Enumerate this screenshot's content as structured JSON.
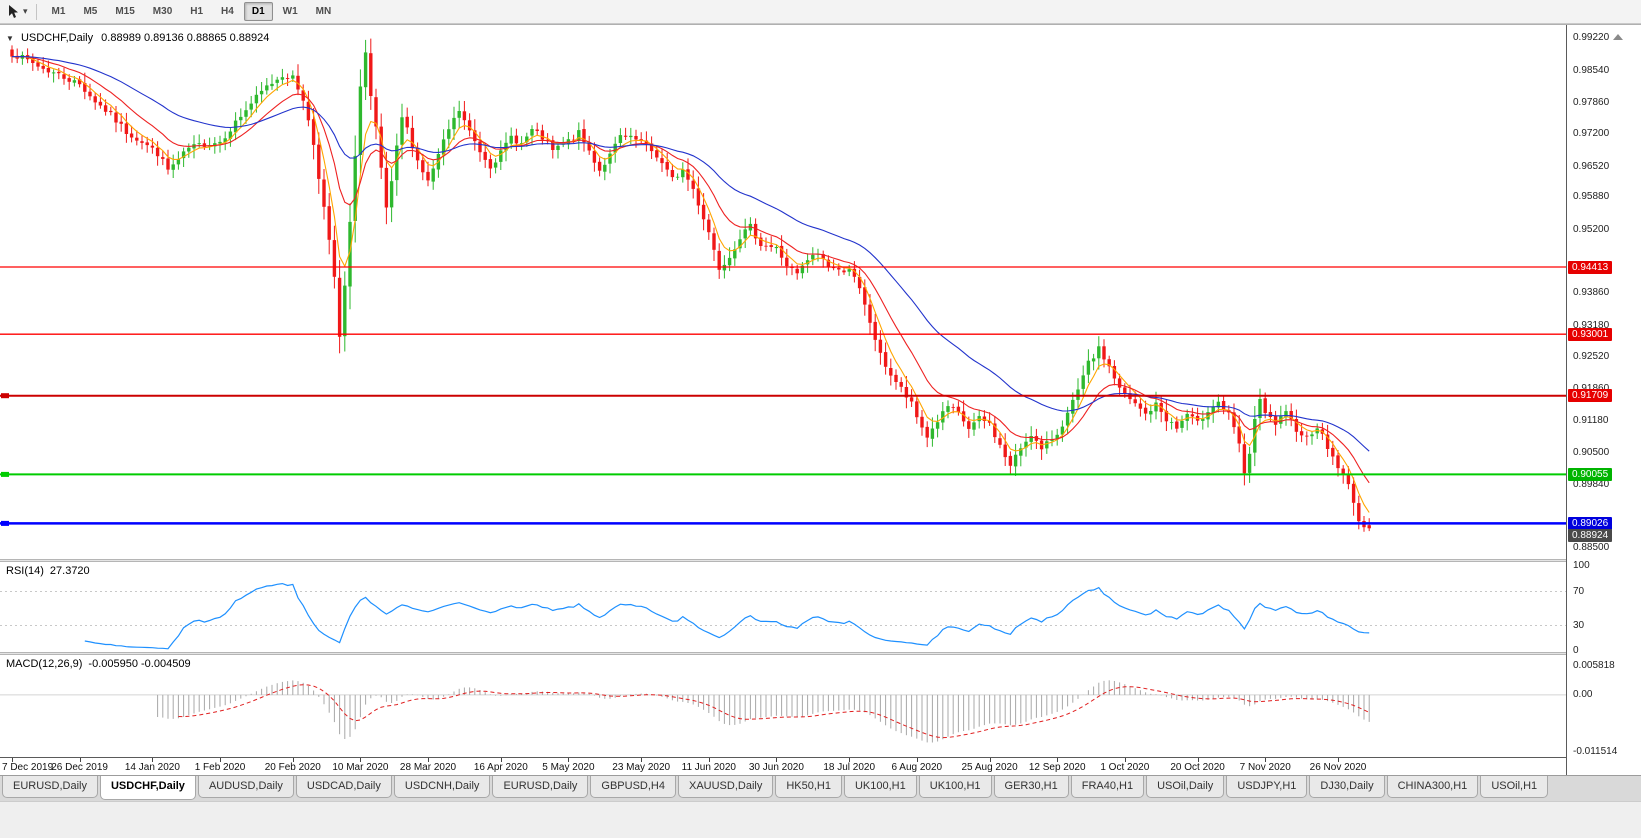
{
  "toolbar": {
    "timeframes": [
      "M1",
      "M5",
      "M15",
      "M30",
      "H1",
      "H4",
      "D1",
      "W1",
      "MN"
    ],
    "active_timeframe": "D1",
    "caret_icon": "▾"
  },
  "chart": {
    "menu_icon": "▼",
    "title": "USDCHF,Daily",
    "ohlc": "0.88989 0.89136 0.88865 0.88924"
  },
  "rsi": {
    "label": "RSI(14)",
    "value": "27.3720"
  },
  "macd": {
    "label": "MACD(12,26,9)",
    "values": "-0.005950 -0.004509"
  },
  "price_axis": {
    "gridlines": [
      {
        "label": "0.99220",
        "price": 0.9922
      },
      {
        "label": "0.98540",
        "price": 0.9854
      },
      {
        "label": "0.97860",
        "price": 0.9786
      },
      {
        "label": "0.97200",
        "price": 0.972
      },
      {
        "label": "0.96520",
        "price": 0.9652
      },
      {
        "label": "0.95880",
        "price": 0.9588
      },
      {
        "label": "0.95200",
        "price": 0.952
      },
      {
        "label": "0.93860",
        "price": 0.9386
      },
      {
        "label": "0.93180",
        "price": 0.9318
      },
      {
        "label": "0.92520",
        "price": 0.9252
      },
      {
        "label": "0.91860",
        "price": 0.9186
      },
      {
        "label": "0.91180",
        "price": 0.9118
      },
      {
        "label": "0.90500",
        "price": 0.905
      },
      {
        "label": "0.89840",
        "price": 0.8984
      },
      {
        "label": "0.88500",
        "price": 0.885
      }
    ],
    "badges": [
      {
        "label": "0.94413",
        "price": 0.94413,
        "color": "#e60000"
      },
      {
        "label": "0.93001",
        "price": 0.93001,
        "color": "#e60000"
      },
      {
        "label": "0.91709",
        "price": 0.91709,
        "color": "#e60000"
      },
      {
        "label": "0.90055",
        "price": 0.90055,
        "color": "#00b400"
      },
      {
        "label": "0.89026",
        "price": 0.89026,
        "color": "#0000dd"
      },
      {
        "label": "0.88924",
        "price": 0.88924,
        "color": "#4a4a4a",
        "bid": true
      }
    ]
  },
  "rsi_axis": [
    {
      "label": "100",
      "value": 100
    },
    {
      "label": "70",
      "value": 70
    },
    {
      "label": "30",
      "value": 30
    },
    {
      "label": "0",
      "value": 0
    }
  ],
  "macd_axis": [
    {
      "label": "0.005818",
      "value": 0.005818
    },
    {
      "label": "0.00",
      "value": 0
    },
    {
      "label": "-0.011514",
      "value": -0.011514
    }
  ],
  "tabs": [
    {
      "label": "EURUSD,Daily"
    },
    {
      "label": "USDCHF,Daily",
      "active": true
    },
    {
      "label": "AUDUSD,Daily"
    },
    {
      "label": "USDCAD,Daily"
    },
    {
      "label": "USDCNH,Daily"
    },
    {
      "label": "EURUSD,Daily"
    },
    {
      "label": "GBPUSD,H4"
    },
    {
      "label": "XAUUSD,Daily"
    },
    {
      "label": "HK50,H1"
    },
    {
      "label": "UK100,H1"
    },
    {
      "label": "UK100,H1"
    },
    {
      "label": "GER30,H1"
    },
    {
      "label": "FRA40,H1"
    },
    {
      "label": "USOil,Daily"
    },
    {
      "label": "USDJPY,H1"
    },
    {
      "label": "DJ30,Daily"
    },
    {
      "label": "CHINA300,H1"
    },
    {
      "label": "USOil,H1"
    }
  ],
  "colors": {
    "candle_up": "#2eb82e",
    "candle_down": "#f01818",
    "rsi_line": "#1e90ff",
    "level_line": "#c8c8c8"
  },
  "chart_data": [
    {
      "type": "candlestick",
      "symbol": "USDCHF",
      "timeframe": "Daily",
      "candle_count": 262,
      "current_ohlc": {
        "open": 0.88989,
        "high": 0.89136,
        "low": 0.88865,
        "close": 0.88924
      },
      "y_range": {
        "top": 0.9937,
        "bottom": 0.8832
      },
      "x_labels": [
        "7 Dec 2019",
        "26 Dec 2019",
        "14 Jan 2020",
        "1 Feb 2020",
        "20 Feb 2020",
        "10 Mar 2020",
        "28 Mar 2020",
        "16 Apr 2020",
        "5 May 2020",
        "23 May 2020",
        "11 Jun 2020",
        "30 Jun 2020",
        "18 Jul 2020",
        "6 Aug 2020",
        "25 Aug 2020",
        "12 Sep 2020",
        "1 Oct 2020",
        "20 Oct 2020",
        "7 Nov 2020",
        "26 Nov 2020"
      ],
      "x_label_indices": [
        0,
        13,
        27,
        40,
        54,
        67,
        80,
        94,
        107,
        121,
        134,
        147,
        161,
        174,
        188,
        201,
        214,
        228,
        241,
        255
      ],
      "close_anchors": [
        [
          0,
          0.989
        ],
        [
          3,
          0.9875
        ],
        [
          6,
          0.9858
        ],
        [
          9,
          0.9845
        ],
        [
          13,
          0.9825
        ],
        [
          16,
          0.979
        ],
        [
          19,
          0.976
        ],
        [
          22,
          0.9725
        ],
        [
          25,
          0.9705
        ],
        [
          28,
          0.968
        ],
        [
          30,
          0.9645
        ],
        [
          32,
          0.9665
        ],
        [
          34,
          0.969
        ],
        [
          37,
          0.97
        ],
        [
          40,
          0.9705
        ],
        [
          43,
          0.9745
        ],
        [
          46,
          0.9785
        ],
        [
          49,
          0.982
        ],
        [
          52,
          0.9845
        ],
        [
          54,
          0.9838
        ],
        [
          56,
          0.9795
        ],
        [
          58,
          0.97
        ],
        [
          60,
          0.9565
        ],
        [
          62,
          0.942
        ],
        [
          63,
          0.929
        ],
        [
          64,
          0.94
        ],
        [
          65,
          0.953
        ],
        [
          66,
          0.968
        ],
        [
          67,
          0.982
        ],
        [
          68,
          0.989
        ],
        [
          69,
          0.9795
        ],
        [
          70,
          0.973
        ],
        [
          71,
          0.9645
        ],
        [
          72,
          0.9565
        ],
        [
          73,
          0.9615
        ],
        [
          74,
          0.969
        ],
        [
          75,
          0.9755
        ],
        [
          76,
          0.973
        ],
        [
          78,
          0.9665
        ],
        [
          80,
          0.962
        ],
        [
          82,
          0.9675
        ],
        [
          84,
          0.973
        ],
        [
          86,
          0.977
        ],
        [
          88,
          0.9725
        ],
        [
          90,
          0.9685
        ],
        [
          92,
          0.9655
        ],
        [
          94,
          0.968
        ],
        [
          96,
          0.9715
        ],
        [
          98,
          0.97
        ],
        [
          100,
          0.9728
        ],
        [
          102,
          0.9712
        ],
        [
          104,
          0.9685
        ],
        [
          107,
          0.9705
        ],
        [
          109,
          0.9722
        ],
        [
          111,
          0.9685
        ],
        [
          113,
          0.9645
        ],
        [
          115,
          0.9675
        ],
        [
          117,
          0.9715
        ],
        [
          121,
          0.9705
        ],
        [
          124,
          0.9675
        ],
        [
          127,
          0.9625
        ],
        [
          129,
          0.9645
        ],
        [
          131,
          0.9605
        ],
        [
          133,
          0.9545
        ],
        [
          134,
          0.9515
        ],
        [
          136,
          0.944
        ],
        [
          138,
          0.9465
        ],
        [
          140,
          0.9505
        ],
        [
          142,
          0.9525
        ],
        [
          144,
          0.949
        ],
        [
          147,
          0.948
        ],
        [
          149,
          0.9445
        ],
        [
          151,
          0.9425
        ],
        [
          153,
          0.9455
        ],
        [
          155,
          0.947
        ],
        [
          157,
          0.9445
        ],
        [
          159,
          0.9432
        ],
        [
          161,
          0.944
        ],
        [
          163,
          0.9392
        ],
        [
          165,
          0.9325
        ],
        [
          167,
          0.9255
        ],
        [
          169,
          0.9215
        ],
        [
          171,
          0.9185
        ],
        [
          173,
          0.9152
        ],
        [
          174,
          0.9125
        ],
        [
          176,
          0.9085
        ],
        [
          178,
          0.9118
        ],
        [
          180,
          0.9148
        ],
        [
          182,
          0.9132
        ],
        [
          184,
          0.9102
        ],
        [
          186,
          0.9122
        ],
        [
          188,
          0.9112
        ],
        [
          190,
          0.9065
        ],
        [
          192,
          0.9022
        ],
        [
          194,
          0.9062
        ],
        [
          196,
          0.9092
        ],
        [
          198,
          0.9055
        ],
        [
          200,
          0.9082
        ],
        [
          201,
          0.9092
        ],
        [
          203,
          0.9132
        ],
        [
          205,
          0.918
        ],
        [
          207,
          0.9238
        ],
        [
          209,
          0.9268
        ],
        [
          211,
          0.9232
        ],
        [
          213,
          0.9185
        ],
        [
          214,
          0.9172
        ],
        [
          216,
          0.9152
        ],
        [
          218,
          0.9132
        ],
        [
          220,
          0.9152
        ],
        [
          222,
          0.9122
        ],
        [
          224,
          0.9102
        ],
        [
          226,
          0.9132
        ],
        [
          228,
          0.9112
        ],
        [
          230,
          0.9142
        ],
        [
          232,
          0.9158
        ],
        [
          234,
          0.913
        ],
        [
          236,
          0.907
        ],
        [
          237,
          0.9002
        ],
        [
          238,
          0.9052
        ],
        [
          239,
          0.9122
        ],
        [
          240,
          0.9158
        ],
        [
          241,
          0.9132
        ],
        [
          243,
          0.9112
        ],
        [
          245,
          0.9132
        ],
        [
          247,
          0.9102
        ],
        [
          249,
          0.9082
        ],
        [
          251,
          0.9108
        ],
        [
          253,
          0.9062
        ],
        [
          255,
          0.9022
        ],
        [
          257,
          0.8982
        ],
        [
          258,
          0.8952
        ],
        [
          259,
          0.8908
        ],
        [
          260,
          0.8888
        ],
        [
          261,
          0.8892
        ]
      ],
      "hlines": [
        {
          "price": 0.94413,
          "color": "#ff0000",
          "width": 1.3
        },
        {
          "price": 0.93001,
          "color": "#ff0000",
          "width": 1.3
        },
        {
          "price": 0.91709,
          "color": "#cc0000",
          "width": 2
        },
        {
          "price": 0.90055,
          "color": "#00cc00",
          "width": 2
        },
        {
          "price": 0.89026,
          "color": "#0000ff",
          "width": 2.5
        }
      ],
      "moving_averages": [
        {
          "type": "EMA",
          "period": 5,
          "color": "#ffa500"
        },
        {
          "type": "EMA",
          "period": 13,
          "color": "#ee2222"
        },
        {
          "type": "EMA",
          "period": 34,
          "color": "#2233cc"
        }
      ]
    },
    {
      "type": "line",
      "indicator": "RSI",
      "period": 14,
      "current_value": 27.372,
      "range": [
        0,
        100
      ],
      "levels": [
        70,
        30
      ],
      "line_color": "#1e90ff"
    },
    {
      "type": "histogram",
      "indicator": "MACD",
      "fast": 12,
      "slow": 26,
      "signal": 9,
      "current_macd": -0.00595,
      "current_signal": -0.004509,
      "range": [
        0.005818,
        -0.011514
      ],
      "histogram_color": "#a8a8a8",
      "signal_color": "#e02020"
    }
  ]
}
